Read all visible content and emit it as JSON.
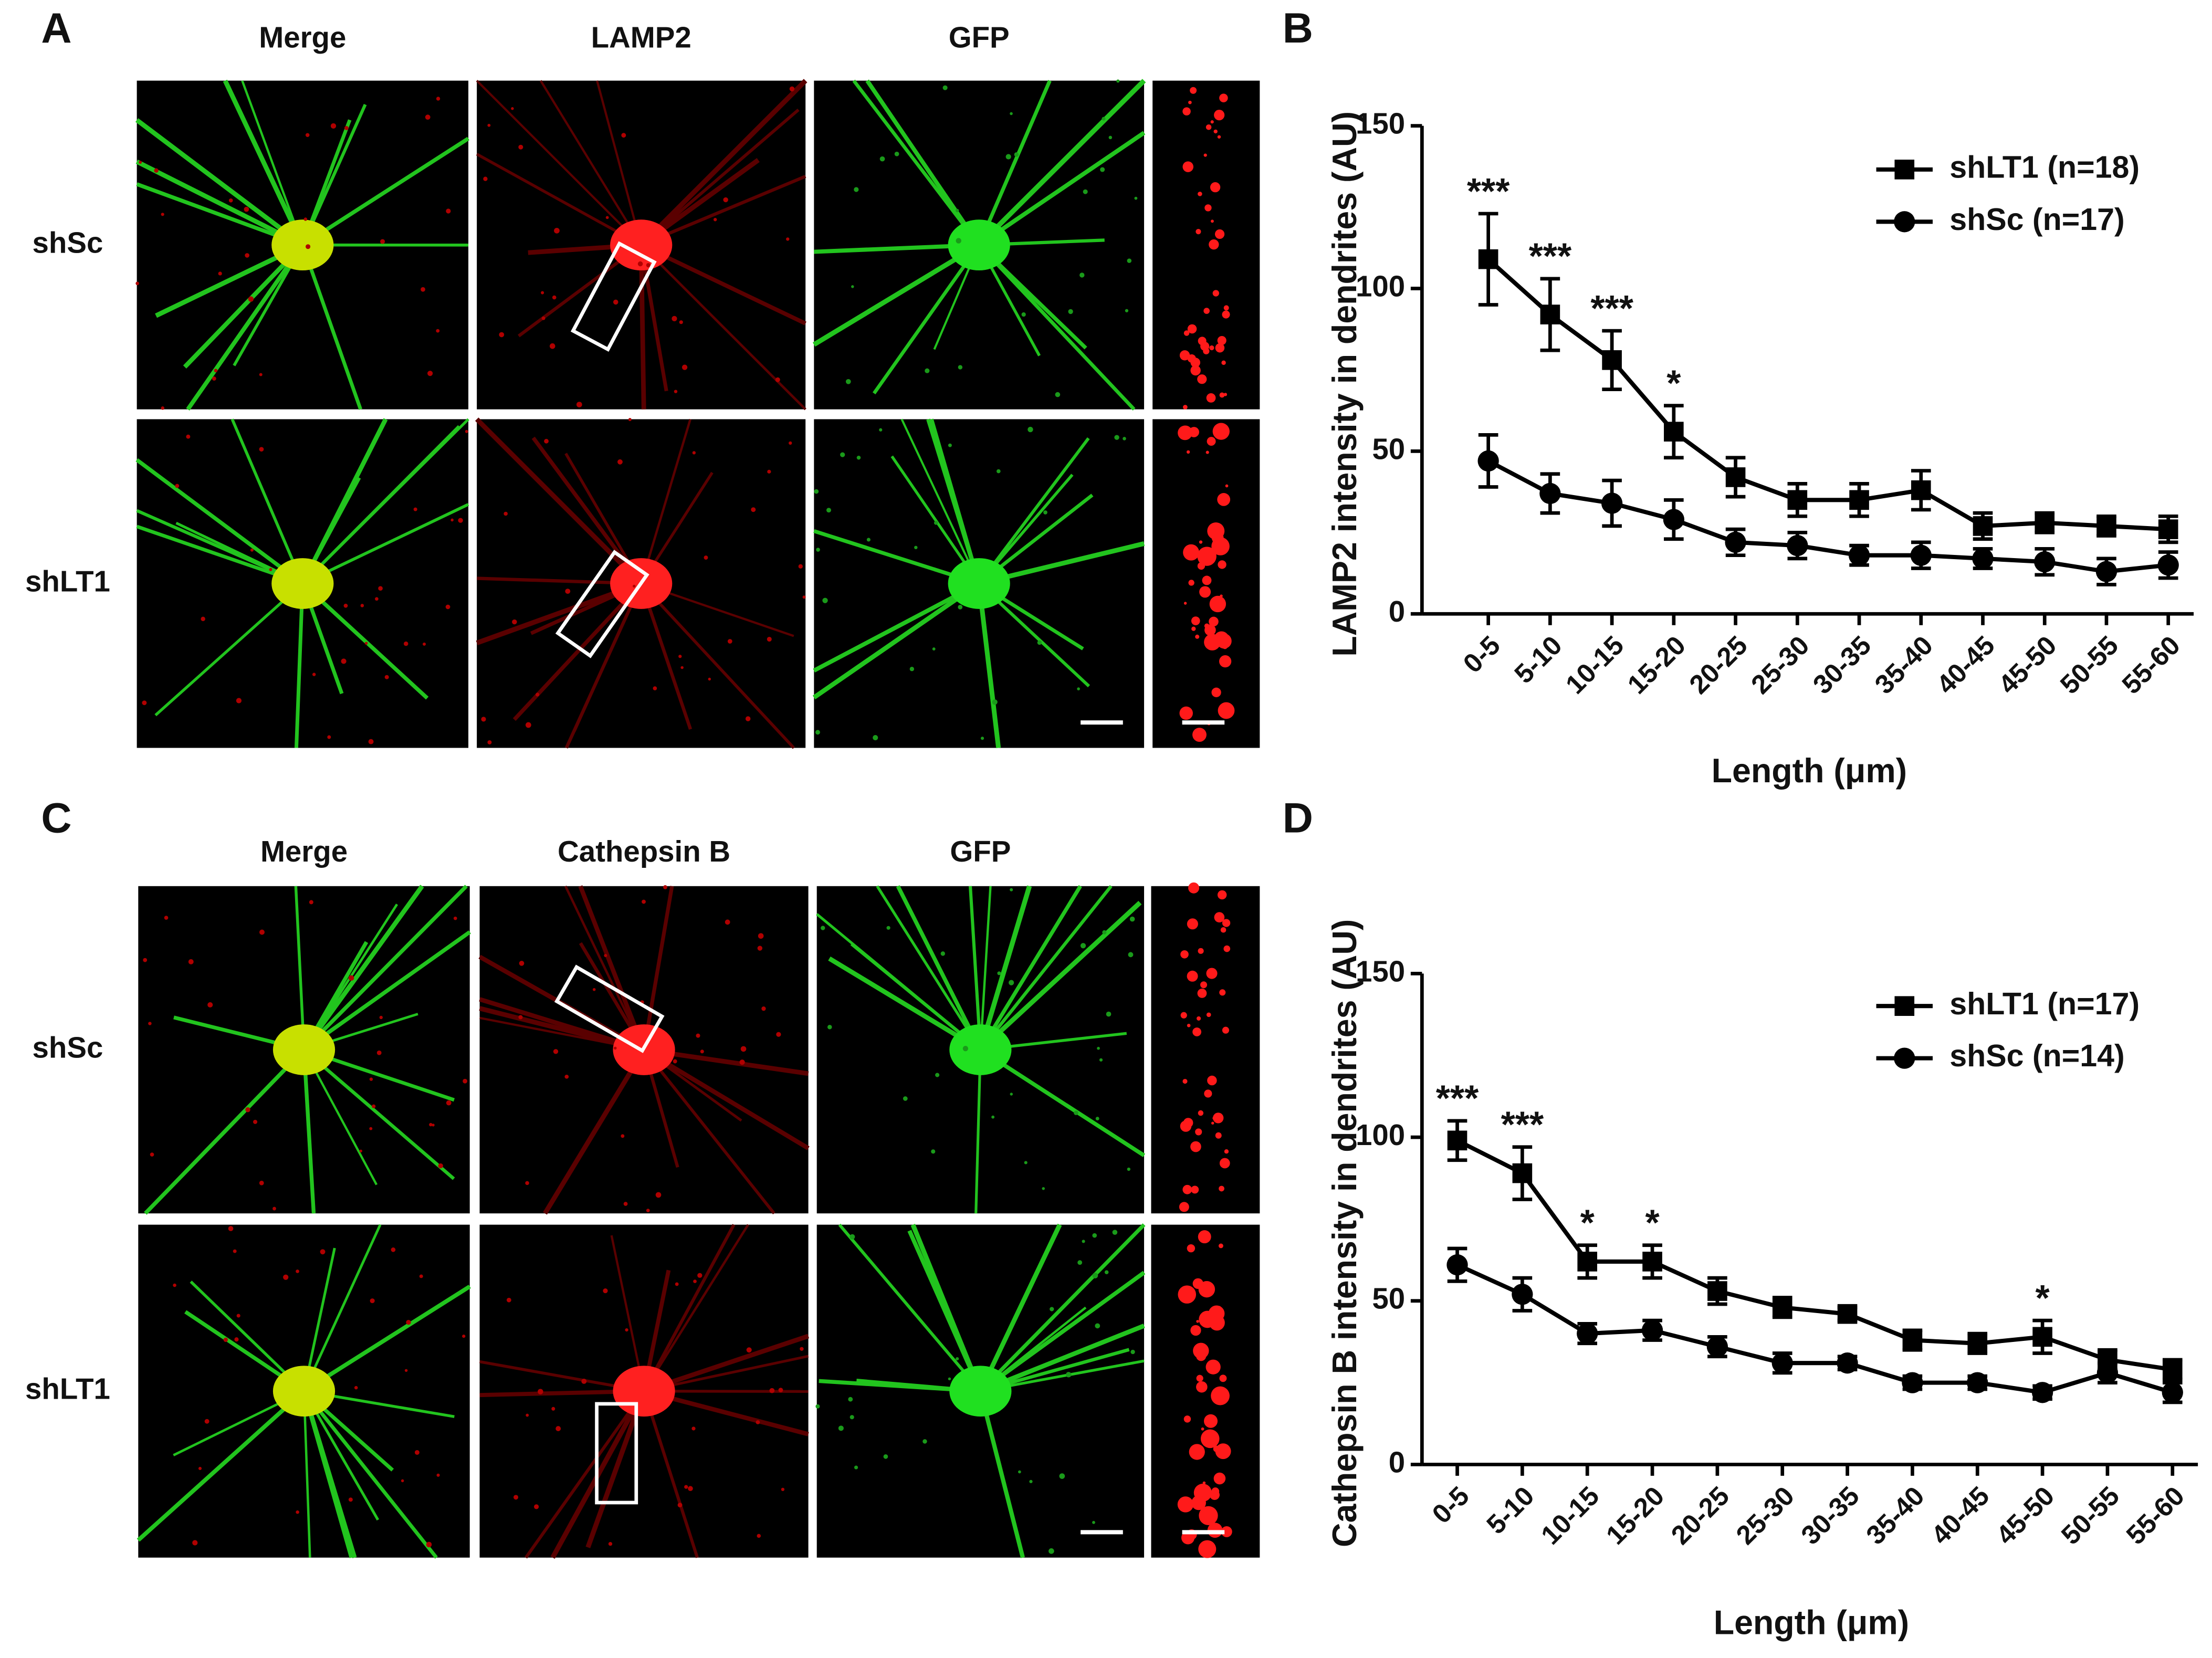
{
  "figure": {
    "panels": [
      {
        "letter": "A",
        "columns": [
          "Merge",
          "LAMP2",
          "GFP"
        ],
        "rows": [
          "shSc",
          "shLT1"
        ]
      },
      {
        "letter": "C",
        "columns": [
          "Merge",
          "Cathepsin B",
          "GFP"
        ],
        "rows": [
          "shSc",
          "shLT1"
        ]
      }
    ]
  },
  "chart_data": [
    {
      "type": "line",
      "panel_label": "B",
      "y_label": "LAMP2 intensity in dendrites (AU)",
      "x_label": "Length (μm)",
      "categories": [
        "0-5",
        "5-10",
        "10-15",
        "15-20",
        "20-25",
        "25-30",
        "30-35",
        "35-40",
        "40-45",
        "45-50",
        "50-55",
        "55-60"
      ],
      "series": [
        {
          "name": "shLT1 (n=18)",
          "color": "#000000",
          "marker": "square",
          "values": [
            109,
            92,
            78,
            56,
            42,
            35,
            35,
            38,
            27,
            28,
            27,
            26
          ],
          "errors": [
            14,
            11,
            9,
            8,
            6,
            5,
            5,
            6,
            4,
            3,
            3,
            4
          ]
        },
        {
          "name": "shSc (n=17)",
          "color": "#000000",
          "marker": "circle",
          "values": [
            47,
            37,
            34,
            29,
            22,
            21,
            18,
            18,
            17,
            16,
            13,
            15
          ],
          "errors": [
            8,
            6,
            7,
            6,
            4,
            4,
            3,
            4,
            3,
            4,
            4,
            4
          ]
        }
      ],
      "annotations": [
        {
          "text": "***",
          "x": "0-5"
        },
        {
          "text": "***",
          "x": "5-10"
        },
        {
          "text": "***",
          "x": "10-15"
        },
        {
          "text": "*",
          "x": "15-20"
        }
      ],
      "ylim": [
        0,
        150
      ],
      "yticks": [
        0,
        50,
        100,
        150
      ],
      "legend": "upper right"
    },
    {
      "type": "line",
      "panel_label": "D",
      "y_label": "Cathepsin B intensity in dendrites (AU)",
      "x_label": "Length (μm)",
      "categories": [
        "0-5",
        "5-10",
        "10-15",
        "15-20",
        "20-25",
        "25-30",
        "30-35",
        "35-40",
        "40-45",
        "45-50",
        "50-55",
        "55-60"
      ],
      "series": [
        {
          "name": "shLT1 (n=17)",
          "color": "#000000",
          "marker": "square",
          "values": [
            99,
            89,
            62,
            62,
            53,
            48,
            46,
            38,
            37,
            39,
            32,
            29
          ],
          "errors": [
            6,
            8,
            5,
            5,
            4,
            3,
            2,
            3,
            3,
            5,
            3,
            3
          ]
        },
        {
          "name": "shSc (n=14)",
          "color": "#000000",
          "marker": "circle",
          "values": [
            61,
            52,
            40,
            41,
            36,
            31,
            31,
            25,
            25,
            22,
            28,
            22
          ],
          "errors": [
            5,
            5,
            3,
            3,
            3,
            3,
            2,
            2,
            2,
            2,
            3,
            3
          ]
        }
      ],
      "annotations": [
        {
          "text": "***",
          "x": "0-5"
        },
        {
          "text": "***",
          "x": "5-10"
        },
        {
          "text": "*",
          "x": "10-15"
        },
        {
          "text": "*",
          "x": "15-20"
        },
        {
          "text": "*",
          "x": "45-50"
        }
      ],
      "ylim": [
        0,
        150
      ],
      "yticks": [
        0,
        50,
        100,
        150
      ],
      "legend": "upper right"
    }
  ]
}
